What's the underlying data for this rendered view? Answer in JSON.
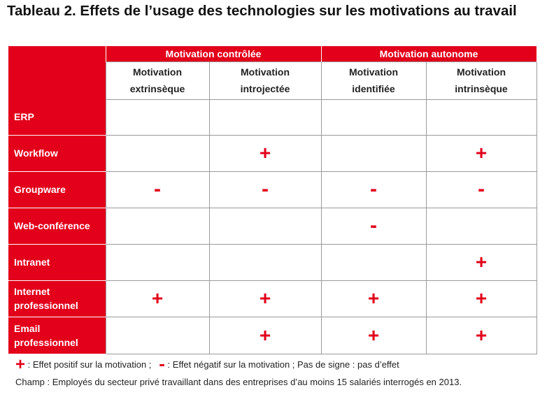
{
  "title": "Tableau 2. Effets de l’usage des technologies sur les motivations au travail",
  "groups": [
    {
      "label": "Motivation contrôlée"
    },
    {
      "label": "Motivation autonome"
    }
  ],
  "columns": [
    {
      "line1": "Motivation",
      "line2": "extrinsèque"
    },
    {
      "line1": "Motivation",
      "line2": "introjectée"
    },
    {
      "line1": "Motivation",
      "line2": "identifiée"
    },
    {
      "line1": "Motivation",
      "line2": "intrinsèque"
    }
  ],
  "rows": [
    {
      "label_line1": "ERP",
      "label_line2": "",
      "cells": [
        "",
        "",
        "",
        ""
      ]
    },
    {
      "label_line1": "Workflow",
      "label_line2": "",
      "cells": [
        "",
        "+",
        "",
        "+"
      ]
    },
    {
      "label_line1": "Groupware",
      "label_line2": "",
      "cells": [
        "-",
        "-",
        "-",
        "-"
      ]
    },
    {
      "label_line1": "Web-conférence",
      "label_line2": "",
      "cells": [
        "",
        "",
        "-",
        ""
      ]
    },
    {
      "label_line1": "Intranet",
      "label_line2": "",
      "cells": [
        "",
        "",
        "",
        "+"
      ]
    },
    {
      "label_line1": "Internet",
      "label_line2": "professionnel",
      "cells": [
        "+",
        "+",
        "+",
        "+"
      ]
    },
    {
      "label_line1": "Email",
      "label_line2": "professionnel",
      "cells": [
        "",
        "+",
        "+",
        "+"
      ]
    }
  ],
  "legend": {
    "plus_symbol": "+",
    "plus_text": " : Effet positif sur la motivation ;",
    "minus_symbol": "-",
    "minus_text": " : Effet négatif sur la motivation ; Pas de signe : pas d’effet",
    "note": "Champ : Employés du secteur privé travaillant dans des entreprises d’au moins 15 salariés interrogés en 2013."
  },
  "colors": {
    "accent": "#e2001a"
  }
}
